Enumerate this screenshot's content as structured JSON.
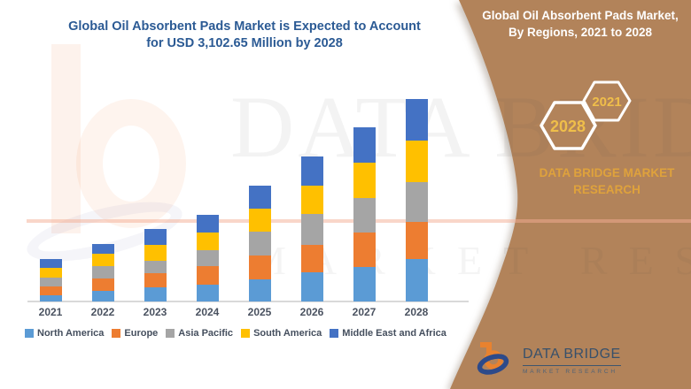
{
  "title": {
    "line1": "Global Oil Absorbent Pads Market is Expected to Account",
    "line2": "for USD 3,102.65 Million by 2028"
  },
  "chart_data": {
    "type": "bar",
    "stacked": true,
    "unit": "USD Million",
    "title": "Global Oil Absorbent Pads Market is Expected to Account for USD 3,102.65 Million by 2028",
    "categories": [
      "2021",
      "2022",
      "2023",
      "2024",
      "2025",
      "2026",
      "2027",
      "2028"
    ],
    "series": [
      {
        "name": "North America",
        "color": "#5B9BD5",
        "values": [
          95,
          163,
          217,
          257,
          339,
          447,
          528,
          650
        ]
      },
      {
        "name": "Europe",
        "color": "#ED7D31",
        "values": [
          135,
          190,
          217,
          285,
          366,
          420,
          528,
          569
        ]
      },
      {
        "name": "Asia Pacific",
        "color": "#A5A5A5",
        "values": [
          135,
          190,
          190,
          244,
          366,
          474,
          528,
          610
        ]
      },
      {
        "name": "South America",
        "color": "#FFC000",
        "values": [
          149,
          190,
          244,
          271,
          352,
          434,
          542,
          637
        ]
      },
      {
        "name": "Middle East and Africa",
        "color": "#4472C4",
        "values": [
          136,
          149,
          243,
          271,
          352,
          447,
          542,
          637
        ]
      }
    ],
    "totals": [
      650,
      882,
      1111,
      1328,
      1775,
      2222,
      2668,
      3103
    ],
    "xlabel": "",
    "ylabel": "",
    "ylim": [
      0,
      3200
    ],
    "grid": false,
    "legend_position": "bottom",
    "estimated_from_pixels": true
  },
  "side_panel": {
    "header_line1": "Global Oil Absorbent Pads Market,",
    "header_line2": "By Regions, 2021 to 2028",
    "hexagon_back_label": "2028",
    "hexagon_front_label": "2021",
    "brand_line1": "DATA BRIDGE MARKET",
    "brand_line2": "RESEARCH"
  },
  "footer_logo": {
    "name": "DATA BRIDGE",
    "subtitle": "MARKET RESEARCH"
  },
  "watermark": {
    "row1": "DATA BRIDGE",
    "row2": "MARKET RESEARCH"
  },
  "colors": {
    "panel_brown": "#B2835A",
    "accent_gold": "#DFA23C",
    "title_blue": "#2B5A94",
    "axis_text": "#4A5260",
    "axis_line": "#D9D9D9"
  }
}
